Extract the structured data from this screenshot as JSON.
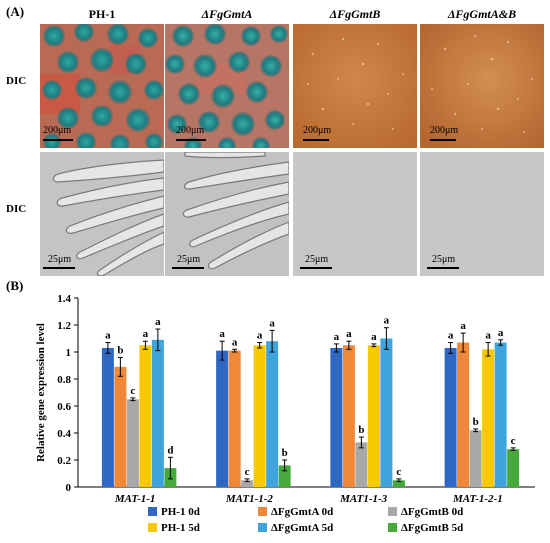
{
  "panel_a": {
    "label": "(A)",
    "columns": [
      "PH-1",
      "ΔFgGmtA",
      "ΔFgGmtB",
      "ΔFgGmtA&B"
    ],
    "row_labels": [
      "DIC",
      "DIC"
    ],
    "scale_bars_row1": [
      "200μm",
      "200μm",
      "200μm",
      "200μm"
    ],
    "scale_bars_row2": [
      "25μm",
      "25μm",
      "25μm",
      "25μm"
    ]
  },
  "panel_b": {
    "label": "(B)"
  },
  "chart_data": {
    "type": "bar",
    "ylabel": "Relative gene expression level",
    "xlabel": "",
    "ylim": [
      0,
      1.4
    ],
    "yticks": [
      "0",
      "0.2",
      "0.4",
      "0.6",
      "0.8",
      "1",
      "1.2",
      "1.4"
    ],
    "grid": false,
    "legend_position": "bottom",
    "categories": [
      "MAT-1-1",
      "MAT1-1-2",
      "MAT1-1-3",
      "MAT-1-2-1"
    ],
    "series": [
      {
        "name": "PH-1  0d",
        "color": "#2f67c5",
        "values": [
          1.03,
          1.01,
          1.03,
          1.03
        ],
        "errors": [
          0.04,
          0.07,
          0.03,
          0.04
        ],
        "letters": [
          "a",
          "a",
          "a",
          "a"
        ]
      },
      {
        "name": "ΔFgGmtA  0d",
        "color": "#f0883a",
        "values": [
          0.89,
          1.01,
          1.05,
          1.07
        ],
        "errors": [
          0.07,
          0.01,
          0.03,
          0.07
        ],
        "letters": [
          "b",
          "a",
          "a",
          "a"
        ]
      },
      {
        "name": "ΔFgGmtB  0d",
        "color": "#a8a8a8",
        "values": [
          0.65,
          0.05,
          0.33,
          0.42
        ],
        "errors": [
          0.01,
          0.01,
          0.04,
          0.01
        ],
        "letters": [
          "c",
          "c",
          "b",
          "b"
        ]
      },
      {
        "name": "PH-1 5d",
        "color": "#f7c900",
        "values": [
          1.05,
          1.05,
          1.05,
          1.02
        ],
        "errors": [
          0.03,
          0.02,
          0.01,
          0.05
        ],
        "letters": [
          "a",
          "a",
          "a",
          "a"
        ]
      },
      {
        "name": "ΔFgGmtA 5d",
        "color": "#3fa4dc",
        "values": [
          1.09,
          1.08,
          1.1,
          1.07
        ],
        "errors": [
          0.08,
          0.08,
          0.08,
          0.02
        ],
        "letters": [
          "a",
          "a",
          "a",
          "a"
        ]
      },
      {
        "name": "ΔFgGmtB  5d",
        "color": "#47a93c",
        "values": [
          0.14,
          0.16,
          0.05,
          0.28
        ],
        "errors": [
          0.08,
          0.04,
          0.01,
          0.01
        ],
        "letters": [
          "d",
          "b",
          "c",
          "c"
        ]
      }
    ]
  }
}
